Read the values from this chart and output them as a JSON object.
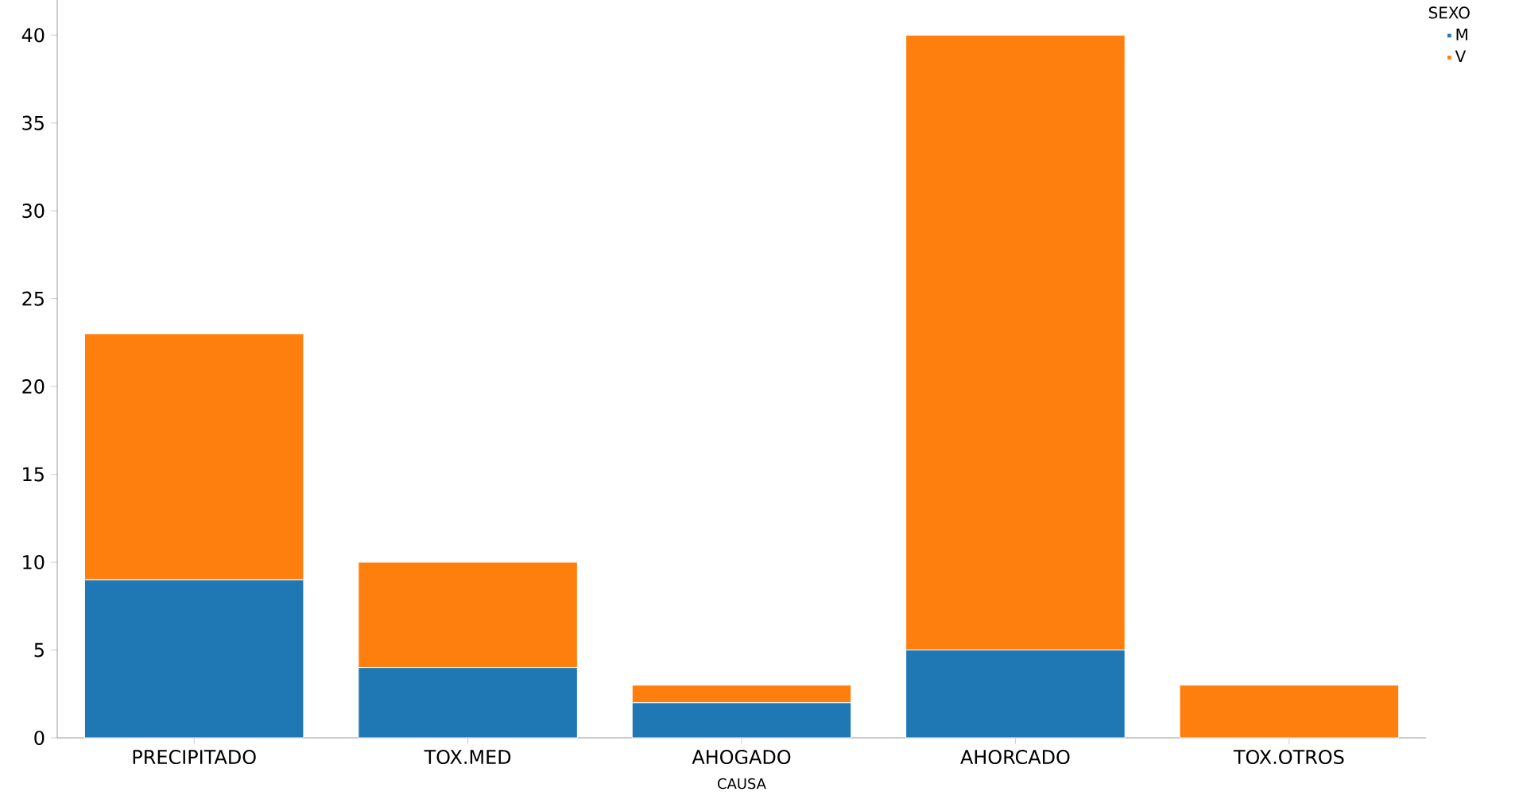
{
  "chart_data": {
    "type": "bar",
    "stacked": true,
    "xlabel": "CAUSA",
    "legend_title": "SEXO",
    "legend": "top right",
    "grid": false,
    "categories": [
      "PRECIPITADO",
      "TOX.MED",
      "AHOGADO",
      "AHORCADO",
      "TOX.OTROS"
    ],
    "series": [
      {
        "name": "M",
        "color": "#1f77b4",
        "values": [
          9,
          4,
          2,
          5,
          0
        ]
      },
      {
        "name": "V",
        "color": "#ff7f0e",
        "values": [
          14,
          6,
          1,
          35,
          3
        ]
      }
    ],
    "ylim": [
      0,
      42
    ],
    "yticks": [
      0,
      5,
      10,
      15,
      20,
      25,
      30,
      35,
      40
    ]
  }
}
